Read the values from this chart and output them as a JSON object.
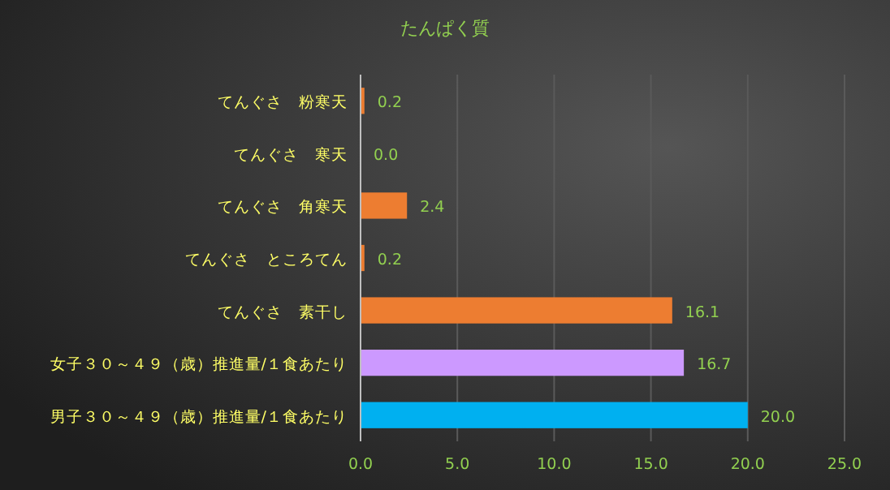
{
  "chart_data": {
    "type": "bar",
    "orientation": "horizontal",
    "title": "たんぱく質",
    "categories": [
      "てんぐさ　粉寒天",
      "てんぐさ　寒天",
      "てんぐさ　角寒天",
      "てんぐさ　ところてん",
      "てんぐさ　素干し",
      "女子３０～４９（歳）推進量/１食あたり",
      "男子３０～４９（歳）推進量/１食あたり"
    ],
    "values": [
      0.2,
      0.0,
      2.4,
      0.2,
      16.1,
      16.7,
      20.0
    ],
    "colors": [
      "#ed7d31",
      "#ed7d31",
      "#ed7d31",
      "#ed7d31",
      "#ed7d31",
      "#cc99ff",
      "#00b0f0"
    ],
    "value_labels": [
      "0.2",
      "0.0",
      "2.4",
      "0.2",
      "16.1",
      "16.7",
      "20.0"
    ],
    "xlim": [
      0,
      25
    ],
    "xticks": [
      {
        "value": 0,
        "label": "0.0"
      },
      {
        "value": 5,
        "label": "5.0"
      },
      {
        "value": 10,
        "label": "10.0"
      },
      {
        "value": 15,
        "label": "15.0"
      },
      {
        "value": 20,
        "label": "20.0"
      },
      {
        "value": 25,
        "label": "25.0"
      }
    ],
    "grid": "x"
  }
}
